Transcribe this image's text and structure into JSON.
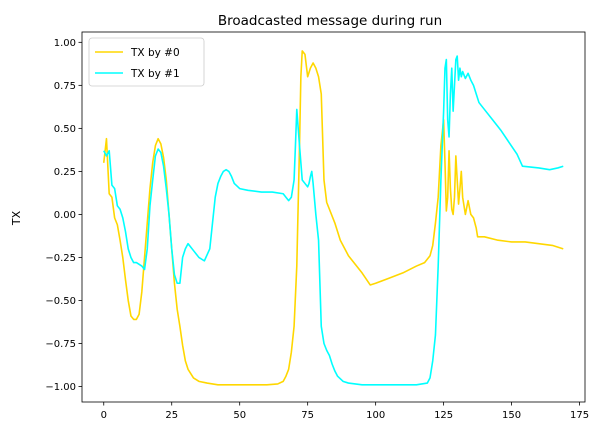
{
  "chart_data": {
    "type": "line",
    "title": "Broadcasted message during run",
    "xlabel": "",
    "ylabel": "TX",
    "xlim": [
      -8,
      177
    ],
    "ylim": [
      -1.09,
      1.06
    ],
    "xticks": [
      0,
      25,
      50,
      75,
      100,
      125,
      150,
      175
    ],
    "yticks": [
      -1.0,
      -0.75,
      -0.5,
      -0.25,
      0.0,
      0.25,
      0.5,
      0.75,
      1.0
    ],
    "ytick_labels": [
      "−1.00",
      "−0.75",
      "−0.50",
      "−0.25",
      "0.00",
      "0.25",
      "0.50",
      "0.75",
      "1.00"
    ],
    "grid": false,
    "legend_position": "upper-left",
    "series": [
      {
        "name": "TX by #0",
        "color": "#ffd700",
        "points": [
          [
            0,
            0.3
          ],
          [
            1,
            0.44
          ],
          [
            2,
            0.12
          ],
          [
            3,
            0.1
          ],
          [
            4,
            -0.02
          ],
          [
            5,
            -0.06
          ],
          [
            6,
            -0.15
          ],
          [
            7,
            -0.25
          ],
          [
            8,
            -0.38
          ],
          [
            9,
            -0.5
          ],
          [
            10,
            -0.59
          ],
          [
            11,
            -0.61
          ],
          [
            12,
            -0.61
          ],
          [
            13,
            -0.58
          ],
          [
            14,
            -0.45
          ],
          [
            15,
            -0.25
          ],
          [
            16,
            -0.05
          ],
          [
            17,
            0.15
          ],
          [
            18,
            0.3
          ],
          [
            19,
            0.4
          ],
          [
            20,
            0.44
          ],
          [
            21,
            0.41
          ],
          [
            22,
            0.33
          ],
          [
            23,
            0.2
          ],
          [
            24,
            0.0
          ],
          [
            25,
            -0.2
          ],
          [
            26,
            -0.4
          ],
          [
            27,
            -0.55
          ],
          [
            28,
            -0.65
          ],
          [
            29,
            -0.76
          ],
          [
            30,
            -0.85
          ],
          [
            31,
            -0.9
          ],
          [
            33,
            -0.95
          ],
          [
            35,
            -0.97
          ],
          [
            38,
            -0.98
          ],
          [
            42,
            -0.99
          ],
          [
            50,
            -0.99
          ],
          [
            60,
            -0.99
          ],
          [
            64,
            -0.985
          ],
          [
            66,
            -0.97
          ],
          [
            67,
            -0.94
          ],
          [
            68,
            -0.9
          ],
          [
            69,
            -0.8
          ],
          [
            70,
            -0.65
          ],
          [
            71,
            -0.3
          ],
          [
            72,
            0.4
          ],
          [
            72.5,
            0.8
          ],
          [
            73,
            0.95
          ],
          [
            74,
            0.93
          ],
          [
            75,
            0.8
          ],
          [
            76,
            0.85
          ],
          [
            77,
            0.88
          ],
          [
            78,
            0.85
          ],
          [
            79,
            0.8
          ],
          [
            80,
            0.7
          ],
          [
            81,
            0.2
          ],
          [
            82,
            0.07
          ],
          [
            83,
            0.03
          ],
          [
            85,
            -0.05
          ],
          [
            87,
            -0.15
          ],
          [
            90,
            -0.24
          ],
          [
            95,
            -0.34
          ],
          [
            98,
            -0.41
          ],
          [
            100,
            -0.4
          ],
          [
            105,
            -0.37
          ],
          [
            110,
            -0.34
          ],
          [
            115,
            -0.3
          ],
          [
            118,
            -0.28
          ],
          [
            120,
            -0.24
          ],
          [
            121,
            -0.18
          ],
          [
            122,
            -0.05
          ],
          [
            123,
            0.1
          ],
          [
            124,
            0.4
          ],
          [
            125,
            0.55
          ],
          [
            125.5,
            0.3
          ],
          [
            126,
            0.02
          ],
          [
            126.5,
            0.1
          ],
          [
            127,
            0.37
          ],
          [
            127.5,
            0.15
          ],
          [
            128,
            0.03
          ],
          [
            128.5,
            0.0
          ],
          [
            129,
            0.1
          ],
          [
            129.5,
            0.34
          ],
          [
            130,
            0.2
          ],
          [
            130.5,
            0.06
          ],
          [
            131,
            0.15
          ],
          [
            131.5,
            0.25
          ],
          [
            132,
            0.1
          ],
          [
            133,
            0.0
          ],
          [
            134,
            0.08
          ],
          [
            135,
            0.0
          ],
          [
            136,
            -0.02
          ],
          [
            137,
            -0.08
          ],
          [
            137.5,
            -0.13
          ],
          [
            140,
            -0.13
          ],
          [
            145,
            -0.15
          ],
          [
            150,
            -0.16
          ],
          [
            155,
            -0.16
          ],
          [
            160,
            -0.17
          ],
          [
            165,
            -0.18
          ],
          [
            169,
            -0.2
          ]
        ]
      },
      {
        "name": "TX by #1",
        "color": "#00ffff",
        "points": [
          [
            0,
            0.37
          ],
          [
            1,
            0.34
          ],
          [
            2,
            0.37
          ],
          [
            3,
            0.17
          ],
          [
            4,
            0.15
          ],
          [
            5,
            0.05
          ],
          [
            6,
            0.03
          ],
          [
            7,
            -0.02
          ],
          [
            8,
            -0.1
          ],
          [
            9,
            -0.2
          ],
          [
            10,
            -0.25
          ],
          [
            11,
            -0.28
          ],
          [
            12,
            -0.28
          ],
          [
            13,
            -0.29
          ],
          [
            14,
            -0.3
          ],
          [
            15,
            -0.32
          ],
          [
            16,
            -0.2
          ],
          [
            17,
            0.05
          ],
          [
            18,
            0.2
          ],
          [
            19,
            0.34
          ],
          [
            20,
            0.38
          ],
          [
            21,
            0.36
          ],
          [
            22,
            0.28
          ],
          [
            23,
            0.15
          ],
          [
            24,
            0.0
          ],
          [
            25,
            -0.2
          ],
          [
            26,
            -0.35
          ],
          [
            27,
            -0.4
          ],
          [
            28,
            -0.4
          ],
          [
            29,
            -0.25
          ],
          [
            30,
            -0.2
          ],
          [
            31,
            -0.17
          ],
          [
            32,
            -0.19
          ],
          [
            33,
            -0.21
          ],
          [
            35,
            -0.25
          ],
          [
            37,
            -0.27
          ],
          [
            39,
            -0.2
          ],
          [
            40,
            -0.05
          ],
          [
            41,
            0.1
          ],
          [
            42,
            0.18
          ],
          [
            43,
            0.22
          ],
          [
            44,
            0.25
          ],
          [
            45,
            0.26
          ],
          [
            46,
            0.25
          ],
          [
            47,
            0.22
          ],
          [
            48,
            0.18
          ],
          [
            50,
            0.15
          ],
          [
            53,
            0.14
          ],
          [
            58,
            0.13
          ],
          [
            62,
            0.13
          ],
          [
            66,
            0.12
          ],
          [
            67,
            0.1
          ],
          [
            68,
            0.08
          ],
          [
            69,
            0.1
          ],
          [
            70,
            0.2
          ],
          [
            70.5,
            0.4
          ],
          [
            71,
            0.61
          ],
          [
            72,
            0.4
          ],
          [
            73,
            0.2
          ],
          [
            74,
            0.18
          ],
          [
            75,
            0.16
          ],
          [
            75.5,
            0.18
          ],
          [
            76,
            0.22
          ],
          [
            76.5,
            0.25
          ],
          [
            77,
            0.18
          ],
          [
            78,
            0.0
          ],
          [
            79,
            -0.15
          ],
          [
            80,
            -0.65
          ],
          [
            81,
            -0.75
          ],
          [
            82,
            -0.79
          ],
          [
            83,
            -0.82
          ],
          [
            84,
            -0.87
          ],
          [
            85,
            -0.91
          ],
          [
            86,
            -0.94
          ],
          [
            88,
            -0.97
          ],
          [
            90,
            -0.98
          ],
          [
            95,
            -0.99
          ],
          [
            100,
            -0.99
          ],
          [
            110,
            -0.99
          ],
          [
            115,
            -0.99
          ],
          [
            119,
            -0.98
          ],
          [
            120,
            -0.95
          ],
          [
            121,
            -0.85
          ],
          [
            122,
            -0.7
          ],
          [
            123,
            -0.3
          ],
          [
            124,
            0.2
          ],
          [
            124.5,
            0.4
          ],
          [
            125,
            0.6
          ],
          [
            125.5,
            0.85
          ],
          [
            126,
            0.9
          ],
          [
            126.5,
            0.55
          ],
          [
            127,
            0.45
          ],
          [
            127.5,
            0.7
          ],
          [
            128,
            0.85
          ],
          [
            128.5,
            0.6
          ],
          [
            129,
            0.75
          ],
          [
            129.5,
            0.9
          ],
          [
            130,
            0.92
          ],
          [
            130.5,
            0.78
          ],
          [
            131,
            0.85
          ],
          [
            131.5,
            0.8
          ],
          [
            132,
            0.83
          ],
          [
            133,
            0.79
          ],
          [
            134,
            0.82
          ],
          [
            135,
            0.78
          ],
          [
            136,
            0.75
          ],
          [
            137,
            0.7
          ],
          [
            138,
            0.65
          ],
          [
            140,
            0.61
          ],
          [
            143,
            0.55
          ],
          [
            146,
            0.49
          ],
          [
            149,
            0.42
          ],
          [
            152,
            0.35
          ],
          [
            154,
            0.28
          ],
          [
            160,
            0.27
          ],
          [
            164,
            0.26
          ],
          [
            167,
            0.27
          ],
          [
            169,
            0.28
          ]
        ]
      }
    ]
  }
}
